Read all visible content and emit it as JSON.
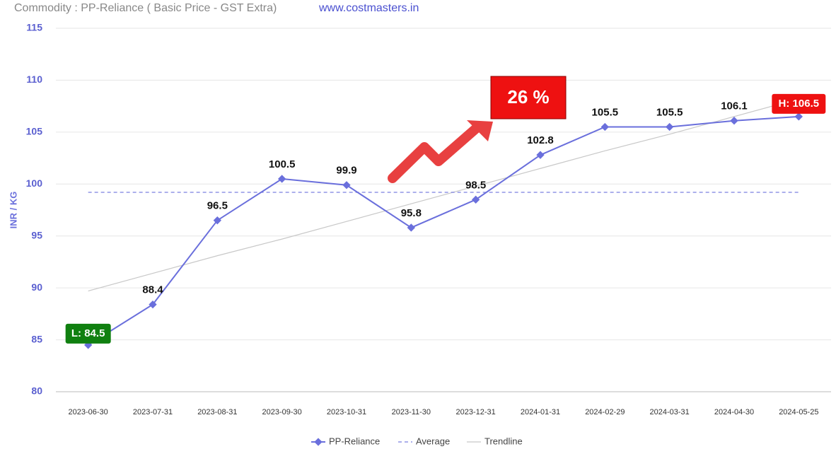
{
  "chart_data": {
    "type": "line",
    "title": "Commodity : PP-Reliance ( Basic Price - GST Extra)",
    "subtitle": "www.costmasters.in",
    "y_label": "INR / KG",
    "annotation": "26 %",
    "categories": [
      "2023-06-30",
      "2023-07-31",
      "2023-08-31",
      "2023-09-30",
      "2023-10-31",
      "2023-11-30",
      "2023-12-31",
      "2024-01-31",
      "2024-02-29",
      "2024-03-31",
      "2024-04-30",
      "2024-05-25"
    ],
    "series": [
      {
        "name": "PP-Reliance",
        "color": "#6a6fdc",
        "style": "solid",
        "values": [
          84.5,
          88.4,
          96.5,
          100.5,
          99.9,
          95.8,
          98.5,
          102.8,
          105.5,
          105.5,
          106.1,
          106.5
        ],
        "value_labels": [
          "L: 84.5",
          "88.4",
          "96.5",
          "100.5",
          "99.9",
          "95.8",
          "98.5",
          "102.8",
          "105.5",
          "105.5",
          "106.1",
          "H: 106.5"
        ]
      },
      {
        "name": "Average",
        "color": "#7b7fe0",
        "style": "dashed",
        "values": [
          99.2,
          99.2,
          99.2,
          99.2,
          99.2,
          99.2,
          99.2,
          99.2,
          99.2,
          99.2,
          99.2,
          99.2
        ]
      },
      {
        "name": "Trendline",
        "color": "#c8c8c8",
        "style": "thin",
        "values": [
          89.7,
          91.4,
          93.1,
          94.7,
          96.4,
          98.1,
          99.8,
          101.5,
          103.2,
          104.8,
          106.5,
          108.2
        ]
      }
    ],
    "ylim": [
      80,
      115
    ],
    "yticks": [
      80,
      85,
      90,
      95,
      100,
      105,
      110,
      115
    ],
    "grid": true
  }
}
